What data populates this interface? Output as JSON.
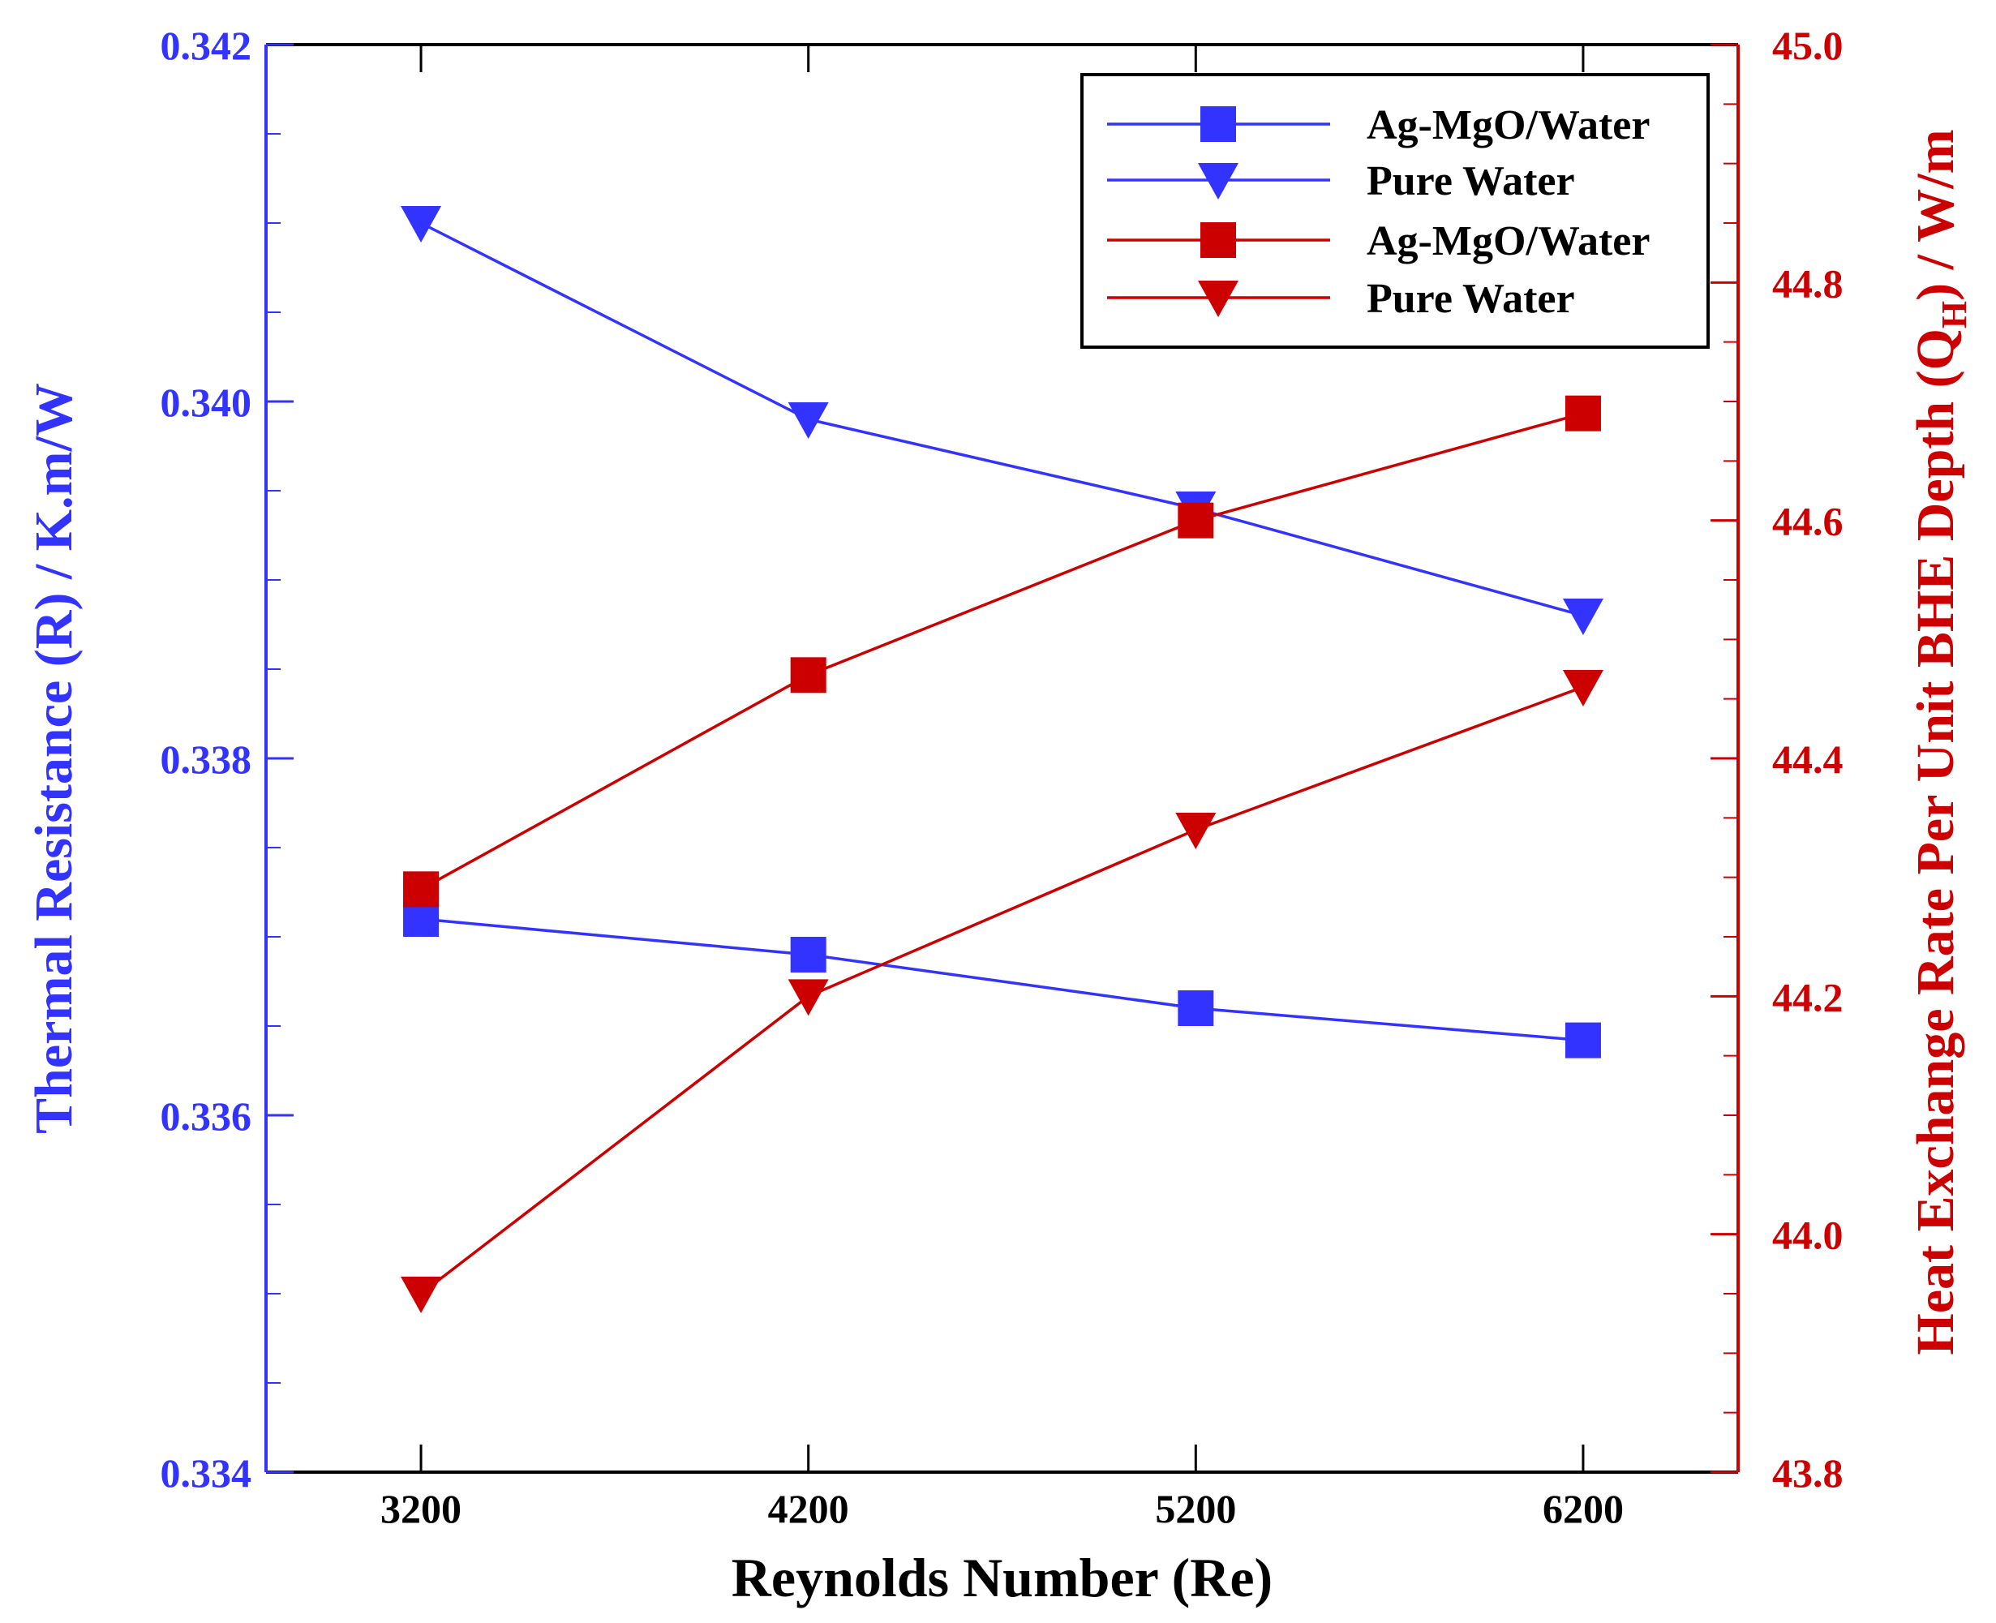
{
  "chart_data": {
    "type": "line",
    "title": "",
    "xlabel": "Reynolds Number (Re)",
    "x": [
      3200,
      4200,
      5200,
      6200
    ],
    "xlim": [
      2800,
      6600
    ],
    "x_tick_labels": [
      "3200",
      "4200",
      "5200",
      "6200"
    ],
    "y_left": {
      "label": "Thermal Resistance (R) / K.m/W",
      "range": [
        0.334,
        0.342
      ],
      "tick_values": [
        0.334,
        0.336,
        0.338,
        0.34,
        0.342
      ],
      "tick_labels": [
        "0.334",
        "0.336",
        "0.338",
        "0.340",
        "0.342"
      ],
      "color": "#3333ff"
    },
    "y_right": {
      "label_main": "Heat Exchange Rate Per Unit BHE Depth (Q",
      "label_sub": "H",
      "label_end": ") / W/m",
      "range": [
        43.8,
        45.0
      ],
      "tick_values": [
        43.8,
        44.0,
        44.2,
        44.4,
        44.6,
        44.8,
        45.0
      ],
      "tick_labels": [
        "43.8",
        "44.0",
        "44.2",
        "44.4",
        "44.6",
        "44.8",
        "45.0"
      ],
      "color": "#cc0000"
    },
    "series": [
      {
        "name": "Ag-MgO/Water",
        "axis": "left",
        "color": "#3333ff",
        "marker": "square",
        "values": [
          0.3371,
          0.3369,
          0.3366,
          0.33642
        ]
      },
      {
        "name": "Pure Water",
        "axis": "left",
        "color": "#3333ff",
        "marker": "triangle-down",
        "values": [
          0.341,
          0.3399,
          0.3394,
          0.3388
        ]
      },
      {
        "name": "Ag-MgO/Water",
        "axis": "right",
        "color": "#cc0000",
        "marker": "square",
        "values": [
          44.29,
          44.47,
          44.6,
          44.69
        ]
      },
      {
        "name": "Pure Water",
        "axis": "right",
        "color": "#cc0000",
        "marker": "triangle-down",
        "values": [
          43.95,
          44.2,
          44.34,
          44.46
        ]
      }
    ],
    "legend_position": "top-right"
  }
}
